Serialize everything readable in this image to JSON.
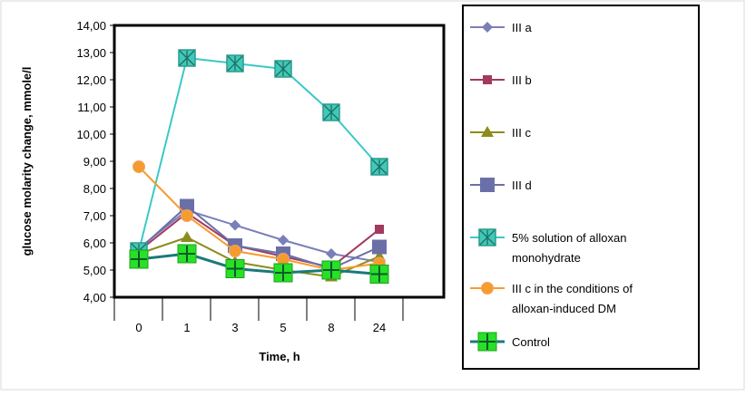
{
  "chart_data": {
    "type": "line",
    "title": "",
    "xlabel": "Time, h",
    "ylabel": "glucose molarity change, mmole/l",
    "categories": [
      "0",
      "1",
      "3",
      "5",
      "8",
      "24"
    ],
    "ylim": [
      4.0,
      14.0
    ],
    "ytick_step": 1.0,
    "ytick_labels": [
      "4,00",
      "5,00",
      "6,00",
      "7,00",
      "8,00",
      "9,00",
      "10,00",
      "11,00",
      "12,00",
      "13,00",
      "14,00"
    ],
    "grid": false,
    "legend_position": "right",
    "series": [
      {
        "name": "III a",
        "values": [
          5.8,
          7.2,
          6.65,
          6.1,
          5.6,
          5.3
        ],
        "color": "#7a7fb8",
        "marker": "diamond"
      },
      {
        "name": "III b",
        "values": [
          5.7,
          7.1,
          5.9,
          5.5,
          5.1,
          6.5
        ],
        "color": "#a23a5e",
        "marker": "square"
      },
      {
        "name": "III c",
        "values": [
          5.6,
          6.2,
          5.3,
          5.0,
          4.75,
          5.5
        ],
        "color": "#8c8c1e",
        "marker": "triangle"
      },
      {
        "name": "III d",
        "values": [
          5.75,
          7.35,
          5.9,
          5.6,
          5.05,
          5.85
        ],
        "color": "#6b6fa8",
        "marker": "square-large"
      },
      {
        "name": "5% solution of alloxan monohydrate",
        "values": [
          5.7,
          12.8,
          12.6,
          12.4,
          10.8,
          8.8
        ],
        "color": "#3cc8c8",
        "marker": "x-square"
      },
      {
        "name": "III c in the conditions of alloxan-induced DM",
        "values": [
          8.8,
          7.0,
          5.7,
          5.4,
          5.0,
          5.25
        ],
        "color": "#f59c2e",
        "marker": "circle"
      },
      {
        "name": "Control",
        "values": [
          5.4,
          5.6,
          5.05,
          4.9,
          5.0,
          4.85
        ],
        "color": "#1a7a7a",
        "marker": "plus-square"
      }
    ]
  }
}
